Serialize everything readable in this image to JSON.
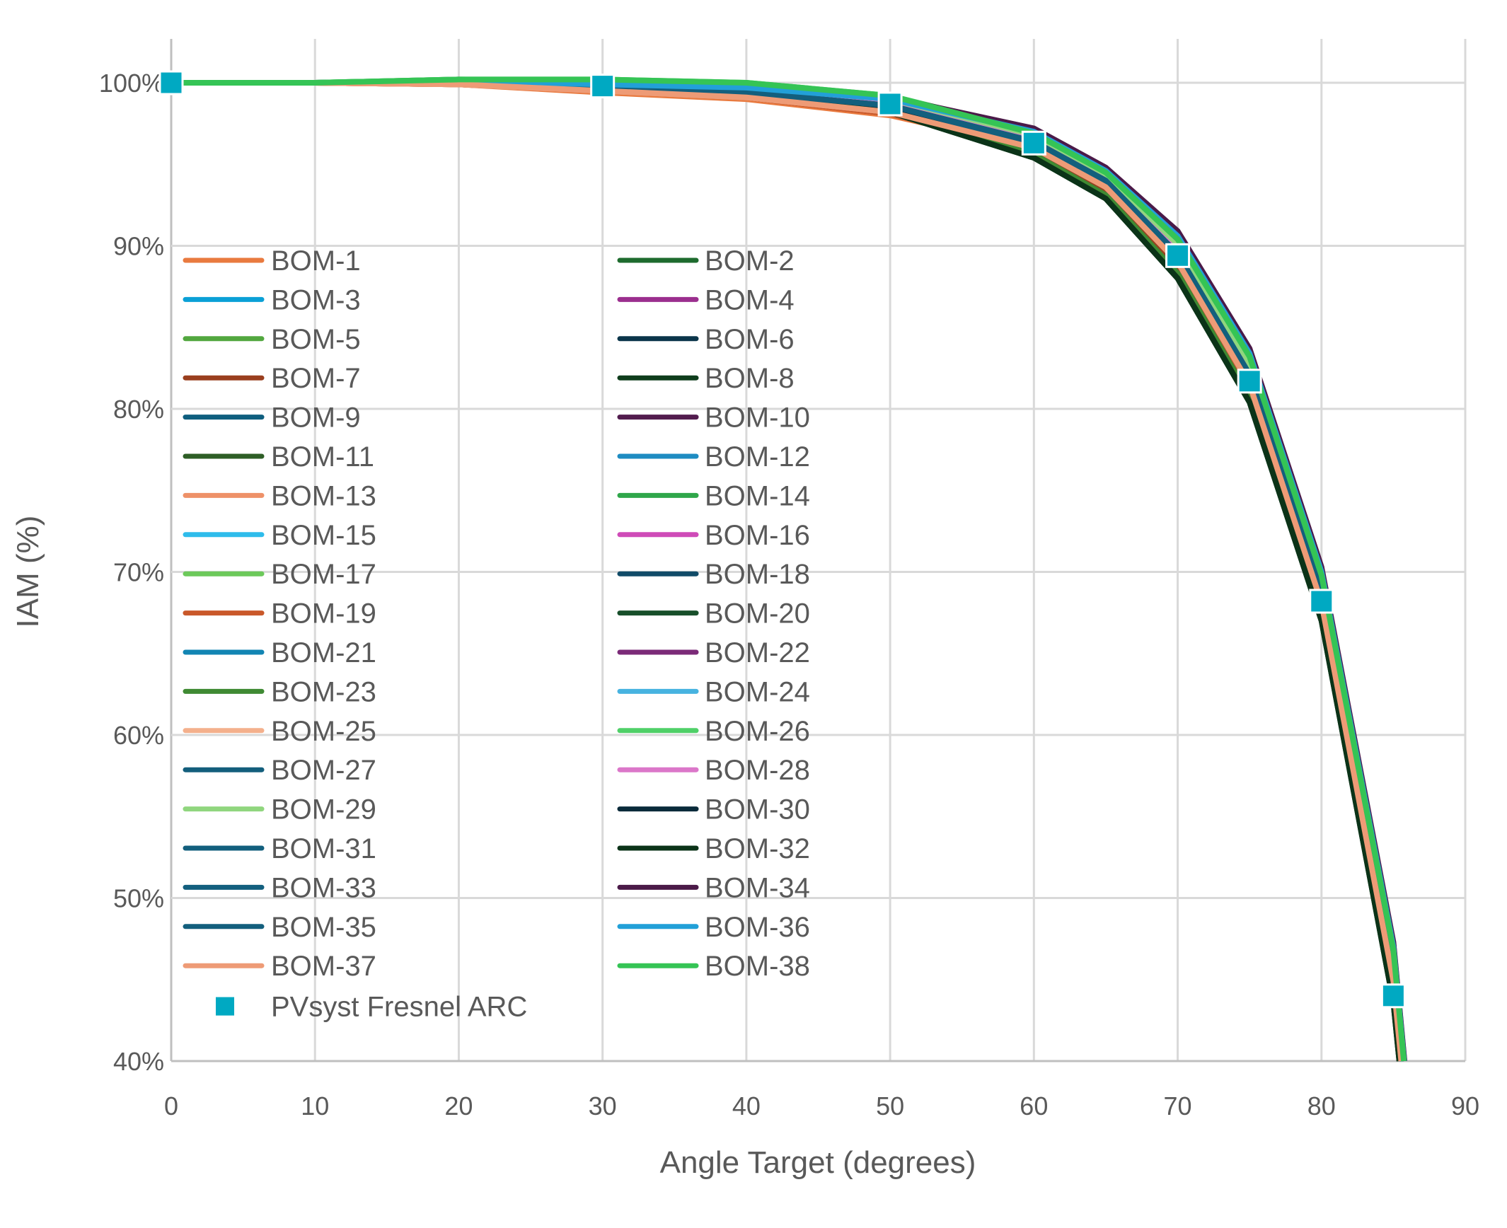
{
  "chart_data": {
    "type": "line",
    "title": "",
    "xlabel": "Angle Target (degrees)",
    "ylabel": "IAM (%)",
    "xlim": [
      0,
      90
    ],
    "ylim": [
      40,
      100
    ],
    "x_ticks": [
      0,
      10,
      20,
      30,
      40,
      50,
      60,
      70,
      80,
      90
    ],
    "y_ticks": [
      "40%",
      "50%",
      "60%",
      "70%",
      "80%",
      "90%",
      "100%"
    ],
    "y_tick_values": [
      40,
      50,
      60,
      70,
      80,
      90,
      100
    ],
    "grid": true,
    "legend_position": "left, inside plot",
    "x": [
      0,
      10,
      20,
      30,
      40,
      50,
      60,
      65,
      70,
      75,
      80,
      85,
      90
    ],
    "series": [
      {
        "name": "BOM-1",
        "color": "#E97A3F",
        "values": [
          100,
          100,
          99.9,
          99.4,
          99.0,
          98.0,
          96.0,
          93.6,
          88.9,
          81.3,
          67.9,
          44.6,
          0
        ]
      },
      {
        "name": "BOM-2",
        "color": "#1E6B2E",
        "values": [
          100,
          100,
          100,
          99.6,
          99.3,
          98.3,
          95.4,
          92.9,
          88.1,
          80.5,
          67.1,
          43.7,
          0
        ]
      },
      {
        "name": "BOM-3",
        "color": "#0AA0D6",
        "values": [
          100,
          100,
          100,
          99.8,
          99.5,
          98.8,
          96.6,
          94.1,
          89.8,
          82.4,
          69.0,
          45.8,
          0
        ]
      },
      {
        "name": "BOM-4",
        "color": "#9B2F8E",
        "values": [
          100,
          100,
          100,
          99.7,
          99.4,
          98.7,
          96.6,
          94.2,
          89.9,
          82.6,
          69.2,
          46.0,
          0
        ]
      },
      {
        "name": "BOM-5",
        "color": "#52A73F",
        "values": [
          100,
          100,
          100,
          99.6,
          99.2,
          98.3,
          95.5,
          93.0,
          88.2,
          80.6,
          67.2,
          43.9,
          0
        ]
      },
      {
        "name": "BOM-6",
        "color": "#0B354A",
        "values": [
          100,
          100,
          100,
          99.6,
          99.3,
          98.5,
          96.0,
          93.5,
          88.9,
          81.4,
          68.0,
          44.8,
          0
        ]
      },
      {
        "name": "BOM-7",
        "color": "#9A3F1E",
        "values": [
          100,
          100,
          99.9,
          99.5,
          99.1,
          98.1,
          95.9,
          93.5,
          88.8,
          81.2,
          67.8,
          44.5,
          0
        ]
      },
      {
        "name": "BOM-8",
        "color": "#0F3D1C",
        "values": [
          100,
          100,
          100,
          99.6,
          99.2,
          98.2,
          95.4,
          92.9,
          88.0,
          80.4,
          67.0,
          43.6,
          0
        ]
      },
      {
        "name": "BOM-9",
        "color": "#0E5E7E",
        "values": [
          100,
          100,
          100,
          99.7,
          99.4,
          98.6,
          96.3,
          93.9,
          89.4,
          82.0,
          68.6,
          45.3,
          0
        ]
      },
      {
        "name": "BOM-10",
        "color": "#521C4E",
        "values": [
          100,
          100,
          100.1,
          100.0,
          99.8,
          99.0,
          97.1,
          94.7,
          90.8,
          83.6,
          70.2,
          47.2,
          0
        ]
      },
      {
        "name": "BOM-11",
        "color": "#2E5E26",
        "values": [
          100,
          100,
          100,
          99.6,
          99.3,
          98.4,
          95.6,
          93.1,
          88.3,
          80.7,
          67.3,
          44.0,
          0
        ]
      },
      {
        "name": "BOM-12",
        "color": "#1E8CC2",
        "values": [
          100,
          100,
          100,
          99.8,
          99.5,
          98.8,
          96.7,
          94.3,
          90.0,
          82.8,
          69.4,
          46.2,
          0
        ]
      },
      {
        "name": "BOM-13",
        "color": "#EE9168",
        "values": [
          100,
          100,
          99.9,
          99.5,
          99.1,
          98.2,
          96.0,
          93.6,
          89.0,
          81.5,
          68.1,
          44.9,
          0
        ]
      },
      {
        "name": "BOM-14",
        "color": "#2FA64A",
        "values": [
          100,
          100,
          100.2,
          100.1,
          99.9,
          99.1,
          96.9,
          94.5,
          90.4,
          83.2,
          69.8,
          46.8,
          0
        ]
      },
      {
        "name": "BOM-15",
        "color": "#2EBCEB",
        "values": [
          100,
          100,
          100,
          99.8,
          99.6,
          98.9,
          96.8,
          94.4,
          90.2,
          83.0,
          69.6,
          46.5,
          0
        ]
      },
      {
        "name": "BOM-16",
        "color": "#CF4BB8",
        "values": [
          100,
          100,
          100,
          99.7,
          99.4,
          98.7,
          96.5,
          94.1,
          89.8,
          82.5,
          69.1,
          45.9,
          0
        ]
      },
      {
        "name": "BOM-17",
        "color": "#6CC95A",
        "values": [
          100,
          100,
          100.1,
          100.0,
          99.8,
          99.0,
          96.8,
          94.4,
          90.2,
          82.9,
          69.5,
          46.4,
          0
        ]
      },
      {
        "name": "BOM-18",
        "color": "#114B68",
        "values": [
          100,
          100,
          100,
          99.7,
          99.4,
          98.6,
          96.4,
          93.9,
          89.5,
          82.1,
          68.7,
          45.4,
          0
        ]
      },
      {
        "name": "BOM-19",
        "color": "#C9582A",
        "values": [
          100,
          100,
          99.9,
          99.5,
          99.1,
          98.1,
          96.0,
          93.6,
          89.0,
          81.4,
          68.0,
          44.7,
          0
        ]
      },
      {
        "name": "BOM-20",
        "color": "#174F2A",
        "values": [
          100,
          100,
          100,
          99.6,
          99.2,
          98.2,
          95.5,
          93.0,
          88.1,
          80.5,
          67.1,
          43.8,
          0
        ]
      },
      {
        "name": "BOM-21",
        "color": "#1285B3",
        "values": [
          100,
          100,
          100,
          99.7,
          99.5,
          98.7,
          96.5,
          94.0,
          89.7,
          82.3,
          68.9,
          45.7,
          0
        ]
      },
      {
        "name": "BOM-22",
        "color": "#7B2A78",
        "values": [
          100,
          100,
          100,
          99.7,
          99.4,
          98.6,
          96.5,
          94.1,
          89.8,
          82.5,
          69.1,
          45.9,
          0
        ]
      },
      {
        "name": "BOM-23",
        "color": "#3F8A33",
        "values": [
          100,
          100,
          100,
          99.6,
          99.3,
          98.3,
          95.6,
          93.1,
          88.3,
          80.7,
          67.3,
          44.0,
          0
        ]
      },
      {
        "name": "BOM-24",
        "color": "#47B3E0",
        "values": [
          100,
          100,
          100,
          99.8,
          99.6,
          98.9,
          96.8,
          94.4,
          90.3,
          83.1,
          69.7,
          46.6,
          0
        ]
      },
      {
        "name": "BOM-25",
        "color": "#F4B08C",
        "values": [
          100,
          100,
          99.9,
          99.5,
          99.1,
          98.2,
          96.1,
          93.7,
          89.1,
          81.6,
          68.2,
          45.0,
          0
        ]
      },
      {
        "name": "BOM-26",
        "color": "#4FD068",
        "values": [
          100,
          100,
          100.2,
          100.2,
          100.0,
          99.2,
          97.0,
          94.6,
          90.5,
          83.3,
          69.9,
          46.9,
          0
        ]
      },
      {
        "name": "BOM-27",
        "color": "#135E7C",
        "values": [
          100,
          100,
          100,
          99.7,
          99.4,
          98.6,
          96.4,
          94.0,
          89.5,
          82.1,
          68.7,
          45.5,
          0
        ]
      },
      {
        "name": "BOM-28",
        "color": "#DB77C9",
        "values": [
          100,
          100,
          100,
          99.7,
          99.4,
          98.7,
          96.5,
          94.1,
          89.7,
          82.4,
          69.0,
          45.8,
          0
        ]
      },
      {
        "name": "BOM-29",
        "color": "#90D67E",
        "values": [
          100,
          100,
          100.1,
          100.0,
          99.8,
          99.0,
          96.8,
          94.4,
          90.1,
          82.8,
          69.4,
          46.3,
          0
        ]
      },
      {
        "name": "BOM-30",
        "color": "#0A2A3A",
        "values": [
          100,
          100,
          100,
          99.6,
          99.3,
          98.5,
          96.0,
          93.6,
          89.0,
          81.5,
          68.1,
          44.9,
          0
        ]
      },
      {
        "name": "BOM-31",
        "color": "#125F7D",
        "values": [
          100,
          100,
          100,
          99.7,
          99.4,
          98.6,
          96.3,
          93.9,
          89.4,
          82.0,
          68.6,
          45.3,
          0
        ]
      },
      {
        "name": "BOM-32",
        "color": "#0B3318",
        "values": [
          100,
          100,
          100,
          99.6,
          99.2,
          98.2,
          95.4,
          92.9,
          88.0,
          80.4,
          67.0,
          43.6,
          0
        ]
      },
      {
        "name": "BOM-33",
        "color": "#135F7E",
        "values": [
          100,
          100,
          100,
          99.7,
          99.4,
          98.6,
          96.4,
          93.9,
          89.5,
          82.1,
          68.7,
          45.4,
          0
        ]
      },
      {
        "name": "BOM-34",
        "color": "#4B1A48",
        "values": [
          100,
          100,
          100.1,
          100.0,
          99.8,
          99.1,
          97.2,
          94.8,
          90.9,
          83.7,
          70.3,
          47.3,
          0
        ]
      },
      {
        "name": "BOM-35",
        "color": "#135F7D",
        "values": [
          100,
          100,
          100,
          99.7,
          99.4,
          98.6,
          96.4,
          94.0,
          89.5,
          82.1,
          68.7,
          45.4,
          0
        ]
      },
      {
        "name": "BOM-36",
        "color": "#22A0D8",
        "values": [
          100,
          100,
          100.1,
          99.9,
          99.7,
          99.0,
          97.0,
          94.6,
          90.6,
          83.4,
          70.0,
          47.0,
          0
        ]
      },
      {
        "name": "BOM-37",
        "color": "#EE9B76",
        "values": [
          100,
          100,
          99.9,
          99.5,
          99.1,
          98.2,
          96.0,
          93.6,
          89.0,
          81.5,
          68.1,
          44.9,
          0
        ]
      },
      {
        "name": "BOM-38",
        "color": "#35C455",
        "values": [
          100,
          100,
          100.2,
          100.2,
          100.0,
          99.2,
          96.9,
          94.5,
          90.4,
          83.2,
          69.8,
          46.8,
          0
        ]
      }
    ],
    "markers": {
      "name": "PVsyst Fresnel ARC",
      "color": "#00A9C2",
      "x": [
        0,
        30,
        50,
        60,
        70,
        75,
        80,
        85
      ],
      "values": [
        100,
        99.8,
        98.7,
        96.3,
        89.4,
        81.7,
        68.2,
        44.0
      ]
    }
  }
}
